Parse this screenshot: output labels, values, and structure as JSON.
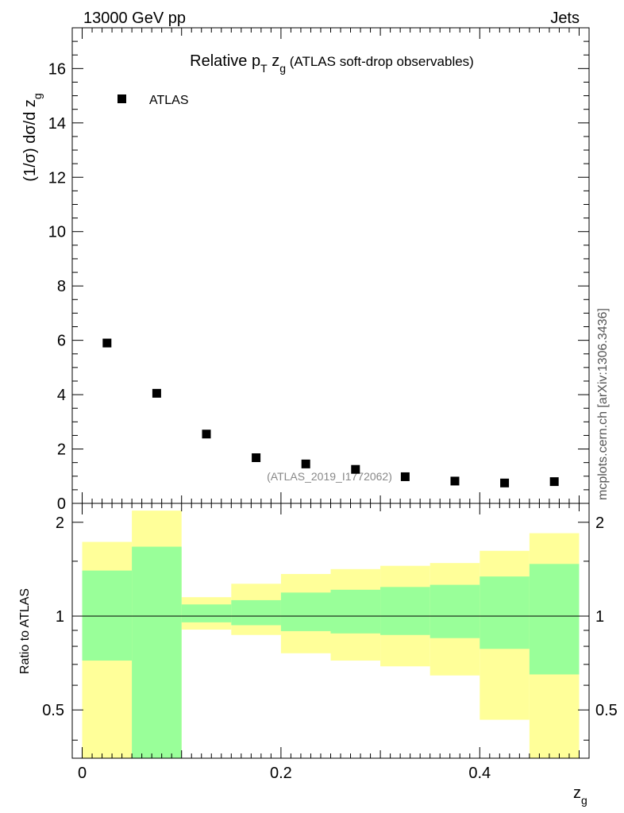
{
  "header": {
    "energy_label": "13000 GeV pp",
    "category_label": "Jets"
  },
  "side_label": "mcplots.cern.ch [arXiv:1306.3436]",
  "chart_data": [
    {
      "type": "scatter",
      "title_main": "Relative p",
      "title_sub_T": "T",
      "title_z": " z",
      "title_sub_g": "g",
      "title_suffix": " (ATLAS soft-drop observables)",
      "ylabel": "(1/σ) dσ/d z",
      "ylabel_sub": "g",
      "ylim": [
        0,
        17.5
      ],
      "yticks": [
        0,
        2,
        4,
        6,
        8,
        10,
        12,
        14,
        16
      ],
      "tick_labels": [
        "0",
        "2",
        "4",
        "6",
        "8",
        "10",
        "12",
        "14",
        "16"
      ],
      "legend": {
        "entry": "ATLAS",
        "placement": "top-left"
      },
      "series": [
        {
          "name": "ATLAS",
          "x": [
            0.025,
            0.075,
            0.125,
            0.175,
            0.225,
            0.275,
            0.325,
            0.375,
            0.425,
            0.475
          ],
          "y": [
            5.9,
            4.05,
            2.55,
            1.68,
            1.45,
            1.25,
            0.98,
            0.82,
            0.75,
            0.8
          ]
        }
      ],
      "analysis_label": "(ATLAS_2019_I1772062)"
    },
    {
      "type": "area",
      "ylabel": "Ratio to ATLAS",
      "xlabel": "z",
      "xlabel_sub": "g",
      "xlim": [
        -0.01,
        0.51
      ],
      "ylim": [
        0.35,
        2.3
      ],
      "xticks": [
        0,
        0.2,
        0.4
      ],
      "xtick_labels": [
        "0",
        "0.2",
        "0.4"
      ],
      "yticks": [
        0.5,
        1,
        2
      ],
      "ytick_labels": [
        "0.5",
        "1",
        "2"
      ],
      "bins": [
        0.0,
        0.05,
        0.1,
        0.15,
        0.2,
        0.25,
        0.3,
        0.35,
        0.4,
        0.45,
        0.5
      ],
      "reference": 1,
      "band_inner": {
        "color": "#99ff99",
        "low": [
          0.72,
          0.3,
          0.955,
          0.935,
          0.895,
          0.88,
          0.87,
          0.85,
          0.785,
          0.65
        ],
        "high": [
          1.4,
          1.67,
          1.09,
          1.125,
          1.19,
          1.215,
          1.24,
          1.26,
          1.34,
          1.47
        ]
      },
      "band_outer": {
        "color": "#ffff99",
        "low": [
          0.3,
          0.3,
          0.905,
          0.87,
          0.76,
          0.72,
          0.69,
          0.645,
          0.465,
          0.3
        ],
        "high": [
          1.73,
          2.18,
          1.15,
          1.27,
          1.365,
          1.415,
          1.45,
          1.48,
          1.62,
          1.845
        ]
      }
    }
  ]
}
